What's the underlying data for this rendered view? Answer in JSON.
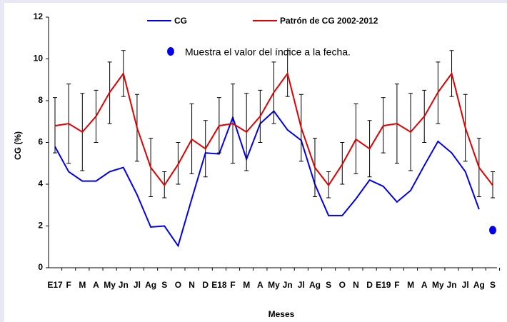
{
  "chart_data": {
    "type": "line",
    "x_label": "Meses",
    "y_label": "CG (%)",
    "categories": [
      "E17",
      "F",
      "M",
      "A",
      "My",
      "Jn",
      "Jl",
      "Ag",
      "S",
      "O",
      "N",
      "D",
      "E18",
      "F",
      "M",
      "A",
      "My",
      "Jn",
      "Jl",
      "Ag",
      "S",
      "O",
      "N",
      "D",
      "E19",
      "F",
      "M",
      "A",
      "My",
      "Jn",
      "Jl",
      "Ag",
      "S"
    ],
    "ylim": [
      0,
      12
    ],
    "yticks": [
      0,
      2,
      4,
      6,
      8,
      10,
      12
    ],
    "series": [
      {
        "name": "CG",
        "color": "#0000ee",
        "values": [
          5.8,
          4.6,
          4.15,
          4.15,
          4.6,
          4.8,
          3.5,
          1.95,
          2.0,
          1.05,
          3.3,
          5.5,
          5.45,
          7.2,
          5.2,
          6.9,
          7.5,
          6.6,
          6.1,
          4.0,
          2.5,
          2.5,
          3.3,
          4.2,
          3.9,
          3.15,
          3.7,
          4.9,
          6.05,
          5.5,
          4.6,
          2.8,
          null
        ]
      },
      {
        "name": "Patrón  de CG 2002-2012",
        "color": "#e00000",
        "values": [
          6.8,
          6.9,
          6.5,
          7.25,
          8.4,
          9.3,
          6.7,
          4.8,
          3.95,
          4.95,
          6.15,
          5.7,
          6.8,
          6.9,
          6.5,
          7.25,
          8.4,
          9.3,
          6.7,
          4.8,
          3.95,
          4.95,
          6.15,
          5.7,
          6.8,
          6.9,
          6.5,
          7.25,
          8.4,
          9.3,
          6.7,
          4.8,
          3.95
        ],
        "upper": [
          8.15,
          8.8,
          8.35,
          8.5,
          9.85,
          10.4,
          8.3,
          6.2,
          4.6,
          6.0,
          7.85,
          7.05,
          8.15,
          8.8,
          8.35,
          8.5,
          9.85,
          10.4,
          8.3,
          6.2,
          4.6,
          6.0,
          7.85,
          7.05,
          8.15,
          8.8,
          8.35,
          8.5,
          9.85,
          10.4,
          8.3,
          6.2,
          4.6
        ],
        "lower": [
          5.5,
          5.0,
          4.65,
          6.0,
          6.9,
          8.2,
          5.1,
          3.4,
          3.35,
          4.0,
          4.5,
          4.35,
          5.5,
          5.0,
          4.65,
          6.0,
          6.9,
          8.2,
          5.1,
          3.4,
          3.35,
          4.0,
          4.5,
          4.35,
          5.5,
          5.0,
          4.65,
          6.0,
          6.9,
          8.2,
          5.1,
          3.4,
          3.35
        ]
      },
      {
        "name": "Muestra el valor del índice a la fecha.",
        "color": "#0000ee",
        "marker": "dot",
        "values": [
          null,
          null,
          null,
          null,
          null,
          null,
          null,
          null,
          null,
          null,
          null,
          null,
          null,
          null,
          null,
          null,
          null,
          null,
          null,
          null,
          null,
          null,
          null,
          null,
          null,
          null,
          null,
          null,
          null,
          null,
          null,
          null,
          1.8
        ]
      }
    ]
  }
}
